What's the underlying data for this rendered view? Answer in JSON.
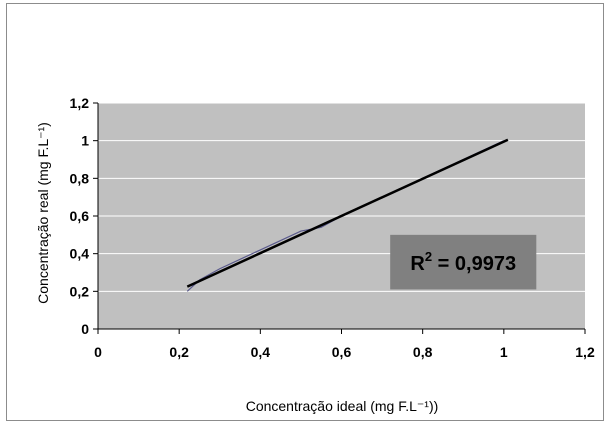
{
  "chart_data": {
    "type": "line",
    "xlabel": "Concentração ideal (mg F.L⁻¹))",
    "ylabel": "Concentração real (mg F.L⁻¹)",
    "xlim": [
      0,
      1.2
    ],
    "ylim": [
      0,
      1.2
    ],
    "x_ticks": [
      "0",
      "0,2",
      "0,4",
      "0,6",
      "0,8",
      "1",
      "1,2"
    ],
    "y_ticks": [
      "0",
      "0,2",
      "0,4",
      "0,6",
      "0,8",
      "1",
      "1,2"
    ],
    "x_tick_values": [
      0,
      0.2,
      0.4,
      0.6,
      0.8,
      1.0,
      1.2
    ],
    "y_tick_values": [
      0,
      0.2,
      0.4,
      0.6,
      0.8,
      1.0,
      1.2
    ],
    "grid": "horizontal",
    "background": "#c0c0c0",
    "series": [
      {
        "role": "data",
        "color": "#5a5a8c",
        "x": [
          0.22,
          0.25,
          0.3,
          0.4,
          0.5,
          0.55,
          0.6,
          0.8,
          1.0
        ],
        "y": [
          0.2,
          0.26,
          0.32,
          0.42,
          0.52,
          0.54,
          0.6,
          0.8,
          1.0
        ]
      },
      {
        "role": "trendline",
        "color": "#000000",
        "x": [
          0.22,
          1.01
        ],
        "y": [
          0.225,
          1.005
        ]
      }
    ],
    "annotation": {
      "text_prefix": "R",
      "superscript": "2",
      "text_suffix": " = 0,9973",
      "box_color": "#808080",
      "x_range": [
        0.72,
        1.08
      ],
      "y_range": [
        0.21,
        0.5
      ]
    }
  }
}
